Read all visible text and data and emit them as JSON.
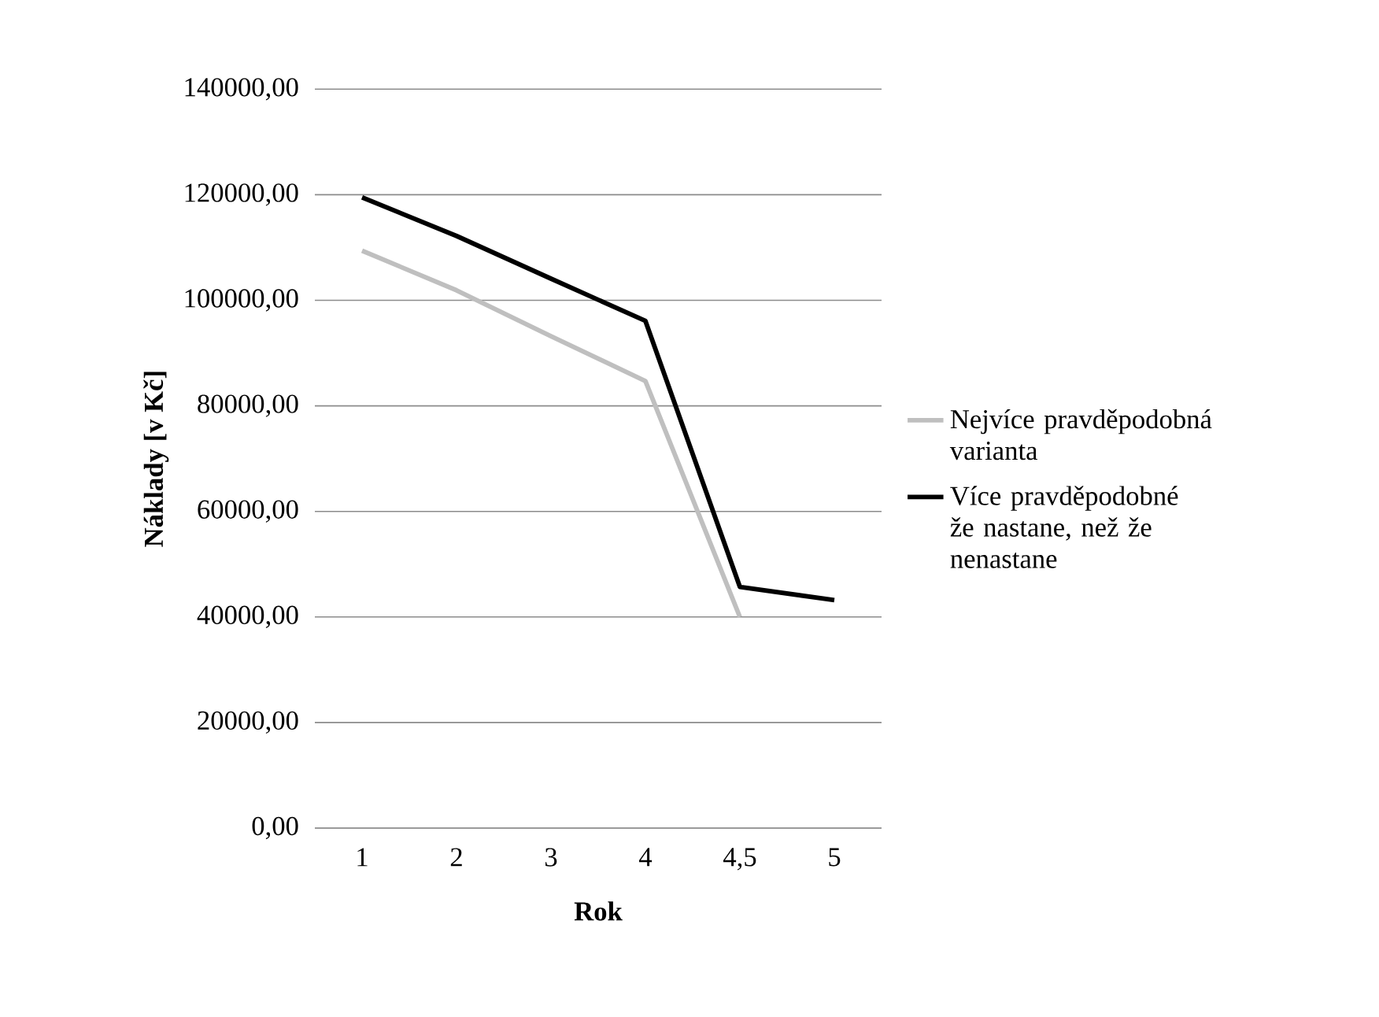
{
  "chart_data": {
    "type": "line",
    "xlabel": "Rok",
    "ylabel": "Náklady [v Kč]",
    "categories": [
      "1",
      "2",
      "3",
      "4",
      "4,5",
      "5"
    ],
    "series": [
      {
        "name": "Nejvíce pravděpodobná varianta",
        "color": "#bfbfbf",
        "values": [
          109400,
          101900,
          93200,
          84700,
          40000,
          null
        ]
      },
      {
        "name": "Více pravděpodobné že nastane, než že nenastane",
        "color": "#000000",
        "values": [
          119500,
          112200,
          104100,
          96100,
          45700,
          43200
        ]
      }
    ],
    "ylim": [
      0,
      140000
    ],
    "yticks": [
      {
        "value": 0,
        "label": "0,00"
      },
      {
        "value": 20000,
        "label": "20000,00"
      },
      {
        "value": 40000,
        "label": "40000,00"
      },
      {
        "value": 60000,
        "label": "60000,00"
      },
      {
        "value": 80000,
        "label": "80000,00"
      },
      {
        "value": 100000,
        "label": "100000,00"
      },
      {
        "value": 120000,
        "label": "120000,00"
      },
      {
        "value": 140000,
        "label": "140000,00"
      }
    ],
    "grid": "y",
    "legend": "right",
    "marker": "none",
    "line_style": "solid"
  }
}
